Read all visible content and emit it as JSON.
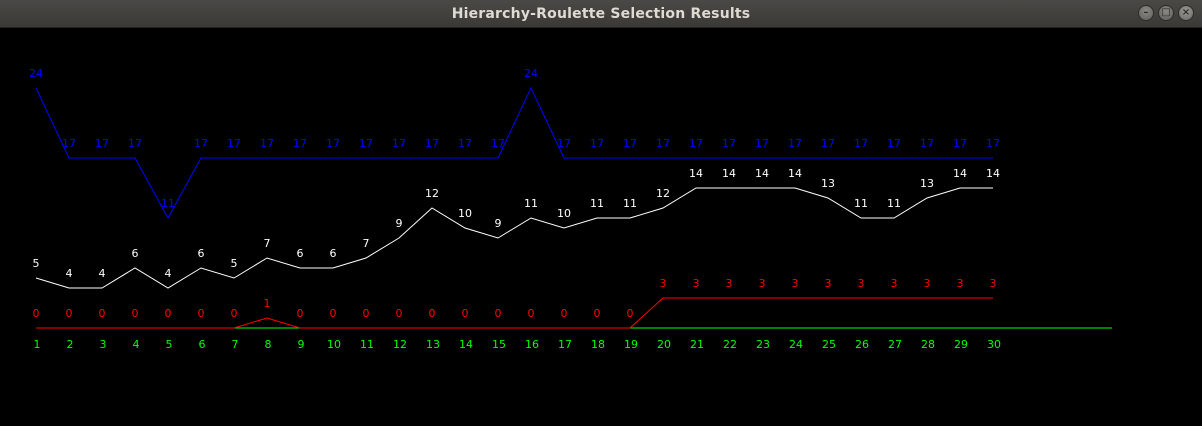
{
  "window": {
    "title": "Hierarchy-Roulette Selection Results",
    "minimize_icon": "minimize-icon",
    "maximize_icon": "maximize-icon",
    "close_icon": "close-icon"
  },
  "chart_data": {
    "type": "line",
    "title": "",
    "xlabel": "",
    "ylabel": "",
    "x": [
      1,
      2,
      3,
      4,
      5,
      6,
      7,
      8,
      9,
      10,
      11,
      12,
      13,
      14,
      15,
      16,
      17,
      18,
      19,
      20,
      21,
      22,
      23,
      24,
      25,
      26,
      27,
      28,
      29,
      30
    ],
    "ylim": [
      0,
      24
    ],
    "grid": false,
    "series": [
      {
        "color": "#0000ff",
        "values": [
          24,
          17,
          17,
          17,
          11,
          17,
          17,
          17,
          17,
          17,
          17,
          17,
          17,
          17,
          17,
          24,
          17,
          17,
          17,
          17,
          17,
          17,
          17,
          17,
          17,
          17,
          17,
          17,
          17,
          17
        ]
      },
      {
        "color": "#ffffff",
        "values": [
          5,
          4,
          4,
          6,
          4,
          6,
          5,
          7,
          6,
          6,
          7,
          9,
          12,
          10,
          9,
          11,
          10,
          11,
          11,
          12,
          14,
          14,
          14,
          14,
          13,
          11,
          11,
          13,
          14,
          14
        ]
      },
      {
        "color": "#ff0000",
        "values": [
          0,
          0,
          0,
          0,
          0,
          0,
          0,
          1,
          0,
          0,
          0,
          0,
          0,
          0,
          0,
          0,
          0,
          0,
          0,
          3,
          3,
          3,
          3,
          3,
          3,
          3,
          3,
          3,
          3,
          3
        ]
      }
    ],
    "axis_color": "#00ff00"
  }
}
